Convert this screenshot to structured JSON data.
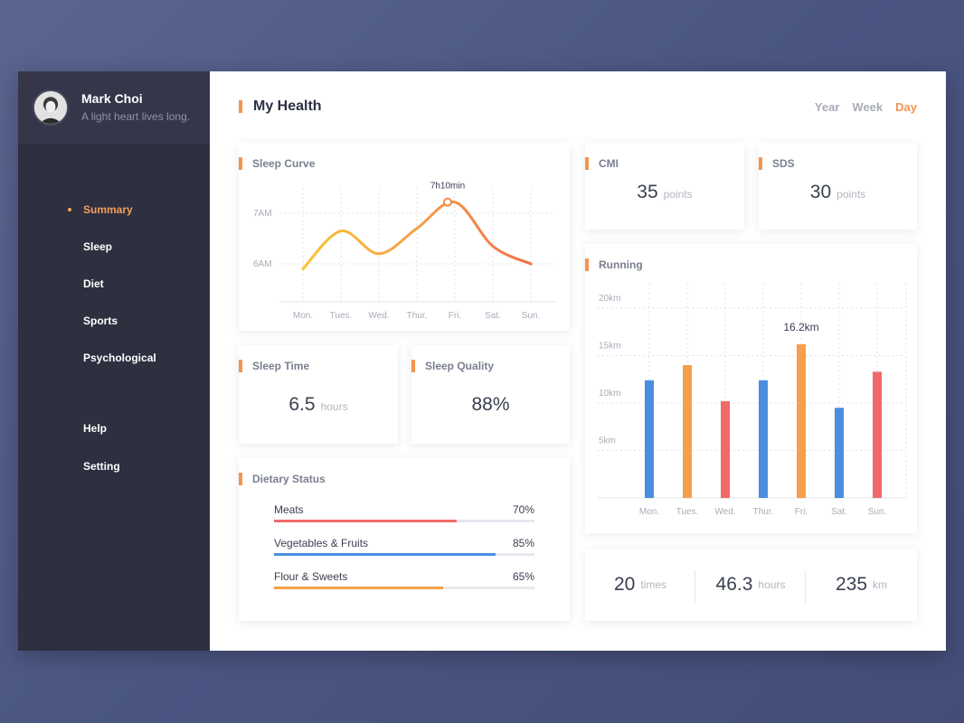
{
  "profile": {
    "name": "Mark Choi",
    "motto": "A light heart lives long."
  },
  "nav": {
    "items": [
      "Summary",
      "Sleep",
      "Diet",
      "Sports",
      "Psychological"
    ],
    "active": "Summary",
    "bottom": [
      "Help",
      "Setting"
    ]
  },
  "header": {
    "title": "My Health"
  },
  "range_tabs": {
    "items": [
      "Year",
      "Week",
      "Day"
    ],
    "active": "Day"
  },
  "sleep_curve": {
    "title": "Sleep Curve",
    "annotation": "7h10min"
  },
  "cmi": {
    "title": "CMI",
    "value": "35",
    "unit": "points"
  },
  "sds": {
    "title": "SDS",
    "value": "30",
    "unit": "points"
  },
  "sleep_time": {
    "title": "Sleep Time",
    "value": "6.5",
    "unit": "hours"
  },
  "sleep_quality": {
    "title": "Sleep Quality",
    "value": "88%"
  },
  "running": {
    "title": "Running",
    "annotation": "16.2km"
  },
  "dietary": {
    "title": "Dietary Status",
    "items": [
      {
        "label": "Meats",
        "pct_text": "70%",
        "pct": 0.7,
        "color": "#f06a6a"
      },
      {
        "label": "Vegetables & Fruits",
        "pct_text": "85%",
        "pct": 0.85,
        "color": "#4a8ee0"
      },
      {
        "label": "Flour & Sweets",
        "pct_text": "65%",
        "pct": 0.65,
        "color": "#f5a04a"
      }
    ]
  },
  "totals": [
    {
      "value": "20",
      "unit": "times"
    },
    {
      "value": "46.3",
      "unit": "hours"
    },
    {
      "value": "235",
      "unit": "km"
    }
  ],
  "colors": {
    "accent": "#f5944f",
    "blue": "#4a8ee0",
    "orange": "#f5a04a",
    "red": "#f06a6a",
    "sidebar": "#2e2f3f"
  },
  "chart_data": [
    {
      "type": "line",
      "title": "Sleep Curve",
      "categories": [
        "Mon.",
        "Tues.",
        "Wed.",
        "Thur.",
        "Fri.",
        "Sat.",
        "Sun."
      ],
      "values": [
        5.9,
        6.65,
        6.2,
        6.7,
        7.22,
        6.35,
        6.0
      ],
      "y_ticks": [
        "6AM",
        "7AM"
      ],
      "grid": true
    },
    {
      "type": "bar",
      "title": "Running",
      "categories": [
        "Mon.",
        "Tues.",
        "Wed.",
        "Thur.",
        "Fri.",
        "Sat.",
        "Sun."
      ],
      "values": [
        12.4,
        14.0,
        10.2,
        12.4,
        16.2,
        9.5,
        13.3
      ],
      "bar_colors": [
        "#4a8ee0",
        "#f5a04a",
        "#f06a6a",
        "#4a8ee0",
        "#f5a04a",
        "#4a8ee0",
        "#f06a6a"
      ],
      "y_ticks": [
        "5km",
        "10km",
        "15km",
        "20km"
      ],
      "ylim": [
        0,
        20
      ],
      "grid": true
    }
  ]
}
